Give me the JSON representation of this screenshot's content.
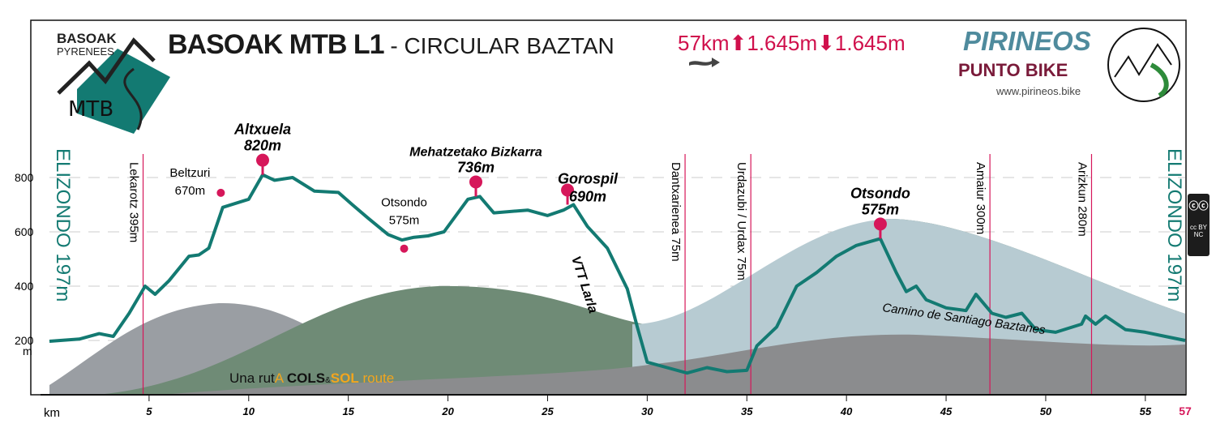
{
  "header": {
    "logo_top": "BASOAK",
    "logo_sub": "PYRENEES",
    "logo_mtb": "MTB",
    "title_bold": "BASOAK MTB L1",
    "title_sep": " - ",
    "title_rest": "CIRCULAR BAZTAN",
    "distance": "57km",
    "ascent": "1.645m",
    "descent": "1.645m",
    "brand_name": "PIRINEOS",
    "brand_sub": "PUNTO BIKE",
    "brand_url": "www.pirineos.bike",
    "license": "cc BY NC"
  },
  "chart_data": {
    "type": "area",
    "xlabel": "km",
    "ylabel": "m",
    "xlim": [
      0,
      57
    ],
    "ylim": [
      0,
      900
    ],
    "x_ticks": [
      "5",
      "10",
      "15",
      "20",
      "25",
      "30",
      "35",
      "40",
      "45",
      "50",
      "55"
    ],
    "x_end_label": "57",
    "y_ticks": [
      "200",
      "400",
      "600",
      "800"
    ],
    "grid": true,
    "profile": {
      "km": [
        0,
        1.5,
        2.5,
        3.2,
        4,
        4.8,
        5.3,
        6,
        7,
        7.5,
        8,
        8.7,
        10,
        10.7,
        11.3,
        12.2,
        13.3,
        14.5,
        15.2,
        16,
        17,
        17.7,
        18.3,
        19,
        19.8,
        21,
        21.6,
        22.3,
        24,
        25,
        25.8,
        26.3,
        27,
        28,
        29,
        29.5,
        30,
        31,
        32,
        33,
        34,
        35,
        35.5,
        36.5,
        37.5,
        38.5,
        39.5,
        40.5,
        41.7,
        42.5,
        43,
        43.5,
        44,
        45,
        46,
        46.5,
        47.3,
        48,
        48.8,
        49.5,
        50.5,
        51.8,
        52,
        52.5,
        53,
        54,
        55,
        56,
        57
      ],
      "elev": [
        197,
        205,
        225,
        215,
        300,
        400,
        370,
        420,
        510,
        515,
        540,
        690,
        720,
        810,
        790,
        800,
        750,
        745,
        700,
        650,
        590,
        570,
        580,
        585,
        600,
        720,
        730,
        670,
        680,
        660,
        680,
        700,
        620,
        540,
        390,
        250,
        120,
        100,
        80,
        100,
        85,
        90,
        180,
        250,
        400,
        450,
        510,
        550,
        575,
        450,
        380,
        400,
        350,
        320,
        310,
        370,
        300,
        285,
        300,
        240,
        230,
        260,
        290,
        260,
        290,
        240,
        230,
        215,
        200
      ]
    },
    "summits": [
      {
        "name": "Altxuela",
        "elev_label": "820m",
        "km": 10.7,
        "elev": 810
      },
      {
        "name": "Mehatzetako Bizkarra",
        "elev_label": "736m",
        "km": 21.4,
        "elev": 730
      },
      {
        "name": "Gorospil",
        "elev_label": "690m",
        "km": 26.0,
        "elev": 700
      },
      {
        "name": "Otsondo",
        "elev_label": "575m",
        "km": 41.7,
        "elev": 575
      }
    ],
    "points": [
      {
        "name": "Beltzuri",
        "elev_label": "670m",
        "km": 8.6,
        "elev": 690
      },
      {
        "name": "Otsondo",
        "elev_label": "575m",
        "km": 17.8,
        "elev": 568
      }
    ],
    "villages": [
      {
        "label": "Lekarotz 395m",
        "km": 4.7
      },
      {
        "label": "Dantxarienea 75m",
        "km": 31.9
      },
      {
        "label": "Urdazubi / Urdax 75m",
        "km": 35.2
      },
      {
        "label": "Amaiur 300m",
        "km": 47.2
      },
      {
        "label": "Arizkun 280m",
        "km": 52.3
      }
    ],
    "start_label": "ELIZONDO 197m",
    "end_label": "ELIZONDO 197m",
    "annotations": {
      "larla": "VTT Larla",
      "camino": "Camino de Santiago Baztanes",
      "cols_1": "Una rut",
      "cols_2": "A ",
      "cols_3": "COLS",
      "cols_4": "&",
      "cols_5": "SOL",
      "cols_6": " route"
    },
    "colors": {
      "profile": "#137a72",
      "marker": "#d6175a",
      "village_line": "#d6175a"
    }
  }
}
